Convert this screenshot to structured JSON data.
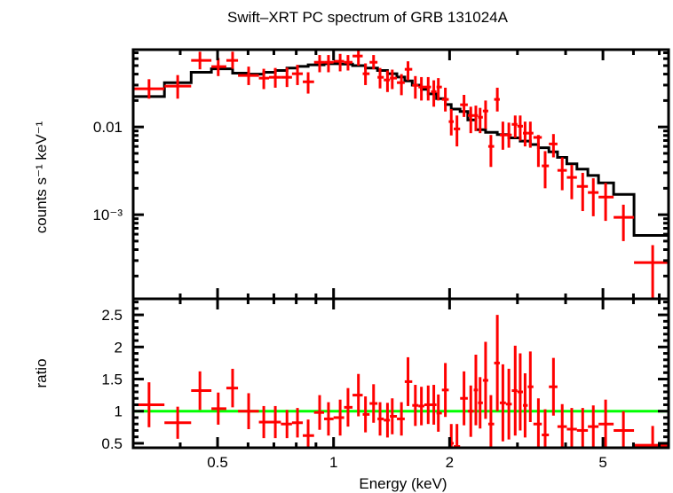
{
  "chart_data": [
    {
      "type": "scatter",
      "panel": "spectrum",
      "title": "Swift–XRT PC spectrum of GRB 131024A",
      "xlabel": "",
      "ylabel": "counts s⁻¹ keV⁻¹",
      "xscale": "log",
      "yscale": "log",
      "xlim": [
        0.302,
        7.4
      ],
      "ylim": [
        0.00011,
        0.076
      ],
      "yticks": [
        {
          "value": 0.01,
          "label": "0.01"
        },
        {
          "value": 0.001,
          "label": "10⁻³"
        }
      ],
      "grid": false,
      "series": [
        {
          "name": "data",
          "color": "#ff0000",
          "points": [
            {
              "x": 0.332,
              "xlo": 0.302,
              "xhi": 0.364,
              "y": 0.0272,
              "ylo": 0.021,
              "yhi": 0.035
            },
            {
              "x": 0.394,
              "xlo": 0.364,
              "xhi": 0.427,
              "y": 0.0292,
              "ylo": 0.021,
              "yhi": 0.039
            },
            {
              "x": 0.45,
              "xlo": 0.427,
              "xhi": 0.482,
              "y": 0.0573,
              "ylo": 0.0454,
              "yhi": 0.072
            },
            {
              "x": 0.502,
              "xlo": 0.482,
              "xhi": 0.527,
              "y": 0.0487,
              "ylo": 0.038,
              "yhi": 0.061
            },
            {
              "x": 0.547,
              "xlo": 0.527,
              "xhi": 0.565,
              "y": 0.0573,
              "ylo": 0.046,
              "yhi": 0.072
            },
            {
              "x": 0.602,
              "xlo": 0.565,
              "xhi": 0.64,
              "y": 0.0386,
              "ylo": 0.03,
              "yhi": 0.0487
            },
            {
              "x": 0.659,
              "xlo": 0.64,
              "xhi": 0.68,
              "y": 0.036,
              "ylo": 0.027,
              "yhi": 0.046
            },
            {
              "x": 0.706,
              "xlo": 0.68,
              "xhi": 0.73,
              "y": 0.0368,
              "ylo": 0.028,
              "yhi": 0.047
            },
            {
              "x": 0.757,
              "xlo": 0.73,
              "xhi": 0.78,
              "y": 0.0368,
              "ylo": 0.0285,
              "yhi": 0.0475
            },
            {
              "x": 0.806,
              "xlo": 0.78,
              "xhi": 0.832,
              "y": 0.0404,
              "ylo": 0.03,
              "yhi": 0.051
            },
            {
              "x": 0.859,
              "xlo": 0.832,
              "xhi": 0.89,
              "y": 0.0327,
              "ylo": 0.024,
              "yhi": 0.042
            },
            {
              "x": 0.92,
              "xlo": 0.89,
              "xhi": 0.945,
              "y": 0.0546,
              "ylo": 0.042,
              "yhi": 0.066
            },
            {
              "x": 0.97,
              "xlo": 0.945,
              "xhi": 1.0,
              "y": 0.0546,
              "ylo": 0.042,
              "yhi": 0.066
            },
            {
              "x": 1.04,
              "xlo": 1.0,
              "xhi": 1.065,
              "y": 0.056,
              "ylo": 0.043,
              "yhi": 0.068
            },
            {
              "x": 1.09,
              "xlo": 1.065,
              "xhi": 1.12,
              "y": 0.0546,
              "ylo": 0.044,
              "yhi": 0.066
            },
            {
              "x": 1.16,
              "xlo": 1.12,
              "xhi": 1.19,
              "y": 0.0643,
              "ylo": 0.05,
              "yhi": 0.074
            },
            {
              "x": 1.21,
              "xlo": 1.19,
              "xhi": 1.24,
              "y": 0.0404,
              "ylo": 0.03,
              "yhi": 0.053
            },
            {
              "x": 1.27,
              "xlo": 1.24,
              "xhi": 1.3,
              "y": 0.0546,
              "ylo": 0.0454,
              "yhi": 0.066
            },
            {
              "x": 1.32,
              "xlo": 1.3,
              "xhi": 1.35,
              "y": 0.0368,
              "ylo": 0.0275,
              "yhi": 0.047
            },
            {
              "x": 1.38,
              "xlo": 1.35,
              "xhi": 1.4,
              "y": 0.0343,
              "ylo": 0.025,
              "yhi": 0.044
            },
            {
              "x": 1.42,
              "xlo": 1.4,
              "xhi": 1.46,
              "y": 0.036,
              "ylo": 0.027,
              "yhi": 0.045
            },
            {
              "x": 1.5,
              "xlo": 1.46,
              "xhi": 1.53,
              "y": 0.032,
              "ylo": 0.023,
              "yhi": 0.04
            },
            {
              "x": 1.56,
              "xlo": 1.53,
              "xhi": 1.6,
              "y": 0.0454,
              "ylo": 0.034,
              "yhi": 0.056
            },
            {
              "x": 1.63,
              "xlo": 1.6,
              "xhi": 1.66,
              "y": 0.0298,
              "ylo": 0.021,
              "yhi": 0.038
            },
            {
              "x": 1.69,
              "xlo": 1.66,
              "xhi": 1.72,
              "y": 0.0285,
              "ylo": 0.02,
              "yhi": 0.037
            },
            {
              "x": 1.76,
              "xlo": 1.72,
              "xhi": 1.79,
              "y": 0.0285,
              "ylo": 0.02,
              "yhi": 0.037
            },
            {
              "x": 1.82,
              "xlo": 1.79,
              "xhi": 1.85,
              "y": 0.0253,
              "ylo": 0.017,
              "yhi": 0.034
            },
            {
              "x": 1.87,
              "xlo": 1.85,
              "xhi": 1.91,
              "y": 0.0285,
              "ylo": 0.02,
              "yhi": 0.036
            },
            {
              "x": 1.95,
              "xlo": 1.91,
              "xhi": 1.99,
              "y": 0.0206,
              "ylo": 0.015,
              "yhi": 0.028
            },
            {
              "x": 2.02,
              "xlo": 1.99,
              "xhi": 2.05,
              "y": 0.0115,
              "ylo": 0.008,
              "yhi": 0.016
            },
            {
              "x": 2.09,
              "xlo": 2.05,
              "xhi": 2.13,
              "y": 0.0095,
              "ylo": 0.006,
              "yhi": 0.0135
            },
            {
              "x": 2.18,
              "xlo": 2.13,
              "xhi": 2.23,
              "y": 0.0179,
              "ylo": 0.013,
              "yhi": 0.0232
            },
            {
              "x": 2.27,
              "xlo": 2.23,
              "xhi": 2.31,
              "y": 0.0135,
              "ylo": 0.0085,
              "yhi": 0.017
            },
            {
              "x": 2.34,
              "xlo": 2.31,
              "xhi": 2.37,
              "y": 0.0135,
              "ylo": 0.009,
              "yhi": 0.0175
            },
            {
              "x": 2.4,
              "xlo": 2.37,
              "xhi": 2.44,
              "y": 0.0129,
              "ylo": 0.0085,
              "yhi": 0.0165
            },
            {
              "x": 2.48,
              "xlo": 2.44,
              "xhi": 2.52,
              "y": 0.0152,
              "ylo": 0.0095,
              "yhi": 0.02
            },
            {
              "x": 2.56,
              "xlo": 2.52,
              "xhi": 2.61,
              "y": 0.006,
              "ylo": 0.0035,
              "yhi": 0.0081
            },
            {
              "x": 2.66,
              "xlo": 2.61,
              "xhi": 2.7,
              "y": 0.0206,
              "ylo": 0.015,
              "yhi": 0.028
            },
            {
              "x": 2.75,
              "xlo": 2.7,
              "xhi": 2.8,
              "y": 0.0081,
              "ylo": 0.0055,
              "yhi": 0.0115
            },
            {
              "x": 2.85,
              "xlo": 2.8,
              "xhi": 2.9,
              "y": 0.0081,
              "ylo": 0.0058,
              "yhi": 0.0112
            },
            {
              "x": 2.96,
              "xlo": 2.9,
              "xhi": 3.0,
              "y": 0.0107,
              "ylo": 0.0075,
              "yhi": 0.0135
            },
            {
              "x": 3.05,
              "xlo": 3.0,
              "xhi": 3.1,
              "y": 0.0102,
              "ylo": 0.007,
              "yhi": 0.0135
            },
            {
              "x": 3.14,
              "xlo": 3.1,
              "xhi": 3.19,
              "y": 0.0085,
              "ylo": 0.006,
              "yhi": 0.0115
            },
            {
              "x": 3.24,
              "xlo": 3.19,
              "xhi": 3.3,
              "y": 0.0085,
              "ylo": 0.0058,
              "yhi": 0.0115
            },
            {
              "x": 3.4,
              "xlo": 3.3,
              "xhi": 3.47,
              "y": 0.0076,
              "ylo": 0.0035,
              "yhi": 0.0081
            },
            {
              "x": 3.54,
              "xlo": 3.47,
              "xhi": 3.62,
              "y": 0.0036,
              "ylo": 0.002,
              "yhi": 0.0053
            },
            {
              "x": 3.72,
              "xlo": 3.62,
              "xhi": 3.81,
              "y": 0.0064,
              "ylo": 0.0045,
              "yhi": 0.0083
            },
            {
              "x": 3.92,
              "xlo": 3.81,
              "xhi": 4.03,
              "y": 0.0032,
              "ylo": 0.0019,
              "yhi": 0.0045
            },
            {
              "x": 4.15,
              "xlo": 4.03,
              "xhi": 4.28,
              "y": 0.00266,
              "ylo": 0.0015,
              "yhi": 0.0037
            },
            {
              "x": 4.43,
              "xlo": 4.28,
              "xhi": 4.57,
              "y": 0.0021,
              "ylo": 0.0011,
              "yhi": 0.003
            },
            {
              "x": 4.72,
              "xlo": 4.57,
              "xhi": 4.87,
              "y": 0.00179,
              "ylo": 0.00096,
              "yhi": 0.0026
            },
            {
              "x": 5.08,
              "xlo": 4.87,
              "xhi": 5.33,
              "y": 0.00159,
              "ylo": 0.00085,
              "yhi": 0.0023
            },
            {
              "x": 5.65,
              "xlo": 5.33,
              "xhi": 6.02,
              "y": 0.000933,
              "ylo": 0.0005,
              "yhi": 0.0013
            },
            {
              "x": 6.73,
              "xlo": 6.02,
              "xhi": 7.4,
              "y": 0.000285,
              "ylo": 0.00011,
              "yhi": 0.00045
            }
          ]
        },
        {
          "name": "model",
          "color": "#000000",
          "type": "step",
          "steps": [
            {
              "x0": 0.302,
              "x1": 0.364,
              "y": 0.0222
            },
            {
              "x0": 0.364,
              "x1": 0.427,
              "y": 0.032
            },
            {
              "x0": 0.427,
              "x1": 0.482,
              "y": 0.042
            },
            {
              "x0": 0.482,
              "x1": 0.547,
              "y": 0.046
            },
            {
              "x0": 0.547,
              "x1": 0.602,
              "y": 0.041
            },
            {
              "x0": 0.602,
              "x1": 0.659,
              "y": 0.04
            },
            {
              "x0": 0.659,
              "x1": 0.706,
              "y": 0.042
            },
            {
              "x0": 0.706,
              "x1": 0.757,
              "y": 0.044
            },
            {
              "x0": 0.757,
              "x1": 0.806,
              "y": 0.047
            },
            {
              "x0": 0.806,
              "x1": 0.859,
              "y": 0.049
            },
            {
              "x0": 0.859,
              "x1": 0.945,
              "y": 0.051
            },
            {
              "x0": 0.945,
              "x1": 1.04,
              "y": 0.0525
            },
            {
              "x0": 1.04,
              "x1": 1.12,
              "y": 0.052
            },
            {
              "x0": 1.12,
              "x1": 1.21,
              "y": 0.05
            },
            {
              "x0": 1.21,
              "x1": 1.3,
              "y": 0.047
            },
            {
              "x0": 1.3,
              "x1": 1.38,
              "y": 0.044
            },
            {
              "x0": 1.38,
              "x1": 1.46,
              "y": 0.0405
            },
            {
              "x0": 1.46,
              "x1": 1.53,
              "y": 0.037
            },
            {
              "x0": 1.53,
              "x1": 1.6,
              "y": 0.0335
            },
            {
              "x0": 1.6,
              "x1": 1.69,
              "y": 0.03
            },
            {
              "x0": 1.69,
              "x1": 1.76,
              "y": 0.0268
            },
            {
              "x0": 1.76,
              "x1": 1.85,
              "y": 0.0238
            },
            {
              "x0": 1.85,
              "x1": 1.95,
              "y": 0.021
            },
            {
              "x0": 1.95,
              "x1": 2.02,
              "y": 0.018
            },
            {
              "x0": 2.02,
              "x1": 2.13,
              "y": 0.016
            },
            {
              "x0": 2.13,
              "x1": 2.23,
              "y": 0.015
            },
            {
              "x0": 2.23,
              "x1": 2.34,
              "y": 0.012
            },
            {
              "x0": 2.34,
              "x1": 2.48,
              "y": 0.0093
            },
            {
              "x0": 2.48,
              "x1": 2.66,
              "y": 0.0087
            },
            {
              "x0": 2.66,
              "x1": 2.85,
              "y": 0.0082
            },
            {
              "x0": 2.85,
              "x1": 3.05,
              "y": 0.0075
            },
            {
              "x0": 3.05,
              "x1": 3.24,
              "y": 0.0069
            },
            {
              "x0": 3.24,
              "x1": 3.4,
              "y": 0.0063
            },
            {
              "x0": 3.4,
              "x1": 3.62,
              "y": 0.0058
            },
            {
              "x0": 3.62,
              "x1": 3.81,
              "y": 0.0052
            },
            {
              "x0": 3.81,
              "x1": 4.03,
              "y": 0.0045
            },
            {
              "x0": 4.03,
              "x1": 4.28,
              "y": 0.0038
            },
            {
              "x0": 4.28,
              "x1": 4.57,
              "y": 0.0033
            },
            {
              "x0": 4.57,
              "x1": 4.87,
              "y": 0.0028
            },
            {
              "x0": 4.87,
              "x1": 5.33,
              "y": 0.0023
            },
            {
              "x0": 5.33,
              "x1": 6.02,
              "y": 0.0017
            },
            {
              "x0": 6.02,
              "x1": 7.4,
              "y": 0.00058
            }
          ]
        }
      ]
    },
    {
      "type": "scatter",
      "panel": "ratio",
      "xlabel": "Energy (keV)",
      "ylabel": "ratio",
      "xscale": "log",
      "yscale": "linear",
      "xlim": [
        0.302,
        7.4
      ],
      "ylim": [
        0.43,
        2.75
      ],
      "xticks": [
        {
          "value": 0.5,
          "label": "0.5"
        },
        {
          "value": 1,
          "label": "1"
        },
        {
          "value": 2,
          "label": "2"
        },
        {
          "value": 5,
          "label": "5"
        }
      ],
      "yticks": [
        {
          "value": 0.5,
          "label": "0.5"
        },
        {
          "value": 1,
          "label": "1"
        },
        {
          "value": 1.5,
          "label": "1.5"
        },
        {
          "value": 2,
          "label": "2"
        },
        {
          "value": 2.5,
          "label": "2.5"
        }
      ],
      "reference_line": {
        "y": 1,
        "color": "#00ff00"
      },
      "grid": false,
      "series": [
        {
          "name": "ratio",
          "color": "#ff0000",
          "values": [
            1.1,
            0.82,
            1.32,
            1.04,
            1.36,
            1.0,
            0.83,
            0.83,
            0.8,
            0.82,
            0.62,
            0.98,
            0.88,
            0.9,
            1.06,
            1.25,
            0.95,
            1.12,
            0.88,
            0.86,
            0.92,
            0.88,
            1.46,
            1.09,
            1.08,
            1.1,
            1.1,
            0.97,
            1.33,
            0.5,
            0.45,
            1.2,
            1.0,
            1.33,
            1.13,
            1.48,
            0.8,
            1.75,
            1.13,
            1.11,
            1.32,
            1.3,
            1.09,
            1.38,
            0.8,
            0.63,
            1.38,
            0.76,
            0.72,
            0.7,
            0.76,
            0.8,
            0.7,
            0.47
          ],
          "errors": [
            0.35,
            0.25,
            0.3,
            0.25,
            0.3,
            0.28,
            0.25,
            0.25,
            0.22,
            0.23,
            0.25,
            0.27,
            0.26,
            0.28,
            0.3,
            0.33,
            0.28,
            0.3,
            0.26,
            0.27,
            0.28,
            0.26,
            0.38,
            0.32,
            0.3,
            0.3,
            0.31,
            0.29,
            0.42,
            0.3,
            0.35,
            0.42,
            0.4,
            0.55,
            0.4,
            0.6,
            0.45,
            0.75,
            0.6,
            0.55,
            0.7,
            0.6,
            0.5,
            0.55,
            0.4,
            0.4,
            0.45,
            0.35,
            0.33,
            0.35,
            0.33,
            0.38,
            0.3,
            0.3
          ]
        }
      ]
    }
  ]
}
